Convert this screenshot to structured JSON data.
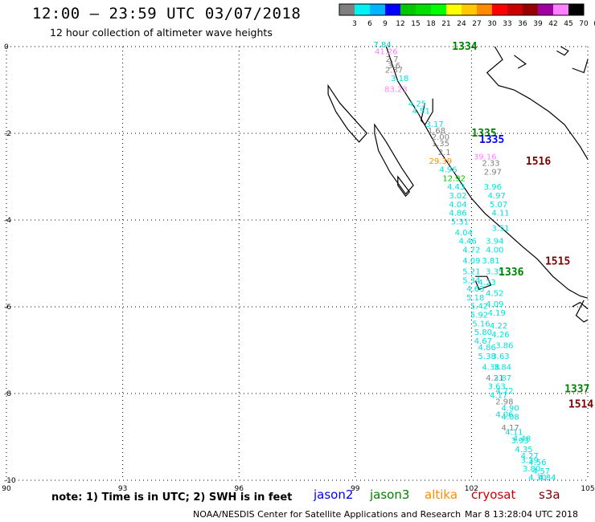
{
  "header": {
    "title": "12:00 — 23:59 UTC 03/07/2018",
    "subtitle": "12 hour collection of altimeter wave heights"
  },
  "colorbar": {
    "labels": [
      "3",
      "6",
      "9",
      "12",
      "15",
      "18",
      "21",
      "24",
      "27",
      "30",
      "33",
      "36",
      "39",
      "42",
      "45",
      "70",
      "(ft)"
    ],
    "colors": [
      "#7f7f7f",
      "#00f2f2",
      "#00b4ff",
      "#0000ff",
      "#00c800",
      "#00e000",
      "#00ff00",
      "#ffff00",
      "#ffc800",
      "#ff8c00",
      "#ff0000",
      "#c80000",
      "#960000",
      "#a000a0",
      "#ff80ff",
      "#000000"
    ]
  },
  "footer": {
    "note": "note:  1) Time is in UTC;  2) SWH is in feet",
    "satellites": [
      {
        "name": "jason2",
        "color": "#0000ff"
      },
      {
        "name": "jason3",
        "color": "#008000"
      },
      {
        "name": "altika",
        "color": "#ff8c00"
      },
      {
        "name": "cryosat",
        "color": "#cc0000"
      },
      {
        "name": "s3a",
        "color": "#800000"
      }
    ],
    "credit": "NOAA/NESDIS Center for Satellite Applications and Research",
    "timestamp": "Mar  8 13:28:04 UTC 2018"
  },
  "chart_data": {
    "type": "scatter",
    "xlabel": "",
    "ylabel": "",
    "x_ticks": [
      "90",
      "93",
      "96",
      "99",
      "102",
      "105"
    ],
    "y_ticks": [
      "0",
      "-2",
      "-4",
      "-6",
      "-8",
      "-10"
    ],
    "xlim": [
      90,
      105
    ],
    "ylim": [
      -10,
      0
    ],
    "grid": true,
    "coastline_color": "#000000",
    "pass_labels": [
      {
        "text": "1334",
        "lon": 101.5,
        "lat": 0.0,
        "color": "#008000"
      },
      {
        "text": "1335",
        "lon": 102.0,
        "lat": -2.0,
        "color": "#008000"
      },
      {
        "text": "1335",
        "lon": 102.2,
        "lat": -2.15,
        "color": "#0000ff"
      },
      {
        "text": "1516",
        "lon": 103.4,
        "lat": -2.65,
        "color": "#800000"
      },
      {
        "text": "1515",
        "lon": 103.9,
        "lat": -4.95,
        "color": "#800000"
      },
      {
        "text": "1336",
        "lon": 102.7,
        "lat": -5.2,
        "color": "#008000"
      },
      {
        "text": "1337",
        "lon": 104.4,
        "lat": -7.9,
        "color": "#008000"
      },
      {
        "text": "1514",
        "lon": 104.5,
        "lat": -8.25,
        "color": "#800000"
      }
    ],
    "points": [
      {
        "lon": 99.7,
        "lat": -0.02,
        "v": "7.84",
        "color": "#00c8c8"
      },
      {
        "lon": 99.8,
        "lat": -0.18,
        "v": "41.26",
        "color": "#ff80ff"
      },
      {
        "lon": 99.95,
        "lat": -0.35,
        "v": "2.7",
        "color": "#7f7f7f"
      },
      {
        "lon": 100.0,
        "lat": -0.5,
        "v": "3.6",
        "color": "#7f7f7f"
      },
      {
        "lon": 100.0,
        "lat": -0.6,
        "v": "2.37",
        "color": "#7f7f7f"
      },
      {
        "lon": 100.15,
        "lat": -0.8,
        "v": "3.18",
        "color": "#00e0e0"
      },
      {
        "lon": 100.05,
        "lat": -1.05,
        "v": "83.23",
        "color": "#ff80ff"
      },
      {
        "lon": 100.6,
        "lat": -1.38,
        "v": "4.25",
        "color": "#00e0e0"
      },
      {
        "lon": 100.7,
        "lat": -1.55,
        "v": "4.51",
        "color": "#00e0e0"
      },
      {
        "lon": 101.05,
        "lat": -1.85,
        "v": "3.17",
        "color": "#00e0e0"
      },
      {
        "lon": 101.1,
        "lat": -2.0,
        "v": "1.68",
        "color": "#7f7f7f"
      },
      {
        "lon": 101.2,
        "lat": -2.15,
        "v": "2.00",
        "color": "#7f7f7f"
      },
      {
        "lon": 101.2,
        "lat": -2.3,
        "v": "1.35",
        "color": "#7f7f7f"
      },
      {
        "lon": 101.3,
        "lat": -2.5,
        "v": "2.1",
        "color": "#7f7f7f"
      },
      {
        "lon": 101.2,
        "lat": -2.7,
        "v": "29.39",
        "color": "#ff8c00"
      },
      {
        "lon": 102.35,
        "lat": -2.6,
        "v": "39.16",
        "color": "#ff80ff"
      },
      {
        "lon": 102.5,
        "lat": -2.75,
        "v": "2.33",
        "color": "#7f7f7f"
      },
      {
        "lon": 101.4,
        "lat": -2.9,
        "v": "4.96",
        "color": "#00e0e0"
      },
      {
        "lon": 102.55,
        "lat": -2.95,
        "v": "2.97",
        "color": "#7f7f7f"
      },
      {
        "lon": 101.55,
        "lat": -3.1,
        "v": "12.92",
        "color": "#00c800"
      },
      {
        "lon": 101.6,
        "lat": -3.3,
        "v": "4.43",
        "color": "#00e0e0"
      },
      {
        "lon": 102.55,
        "lat": -3.3,
        "v": "3.96",
        "color": "#00e0e0"
      },
      {
        "lon": 101.65,
        "lat": -3.5,
        "v": "3.02",
        "color": "#00e0e0"
      },
      {
        "lon": 102.65,
        "lat": -3.5,
        "v": "4.97",
        "color": "#00e0e0"
      },
      {
        "lon": 101.65,
        "lat": -3.7,
        "v": "4.04",
        "color": "#00e0e0"
      },
      {
        "lon": 102.7,
        "lat": -3.7,
        "v": "5.07",
        "color": "#00e0e0"
      },
      {
        "lon": 101.65,
        "lat": -3.9,
        "v": "4.86",
        "color": "#00e0e0"
      },
      {
        "lon": 102.75,
        "lat": -3.9,
        "v": "4.11",
        "color": "#00e0e0"
      },
      {
        "lon": 101.7,
        "lat": -4.1,
        "v": "5.31",
        "color": "#00e0e0"
      },
      {
        "lon": 102.75,
        "lat": -4.25,
        "v": "3.51",
        "color": "#00e0e0"
      },
      {
        "lon": 101.8,
        "lat": -4.35,
        "v": "4.04",
        "color": "#00e0e0"
      },
      {
        "lon": 101.9,
        "lat": -4.55,
        "v": "4.46",
        "color": "#00e0e0"
      },
      {
        "lon": 102.6,
        "lat": -4.55,
        "v": "3.94",
        "color": "#00e0e0"
      },
      {
        "lon": 102.0,
        "lat": -4.75,
        "v": "4.72",
        "color": "#00e0e0"
      },
      {
        "lon": 102.6,
        "lat": -4.75,
        "v": "4.00",
        "color": "#00e0e0"
      },
      {
        "lon": 102.0,
        "lat": -5.0,
        "v": "4.09",
        "color": "#00e0e0"
      },
      {
        "lon": 102.5,
        "lat": -5.0,
        "v": "3.81",
        "color": "#00e0e0"
      },
      {
        "lon": 102.0,
        "lat": -5.25,
        "v": "5.21",
        "color": "#00e0e0"
      },
      {
        "lon": 102.6,
        "lat": -5.25,
        "v": "3.35",
        "color": "#00e0e0"
      },
      {
        "lon": 102.0,
        "lat": -5.45,
        "v": "5.34",
        "color": "#00e0e0"
      },
      {
        "lon": 102.4,
        "lat": -5.5,
        "v": "4.23",
        "color": "#00e0e0"
      },
      {
        "lon": 102.1,
        "lat": -5.65,
        "v": "4.63",
        "color": "#00e0e0"
      },
      {
        "lon": 102.6,
        "lat": -5.75,
        "v": "4.52",
        "color": "#00e0e0"
      },
      {
        "lon": 102.1,
        "lat": -5.85,
        "v": "5.18",
        "color": "#00e0e0"
      },
      {
        "lon": 102.2,
        "lat": -6.05,
        "v": "5.42",
        "color": "#00e0e0"
      },
      {
        "lon": 102.6,
        "lat": -6.0,
        "v": "4.09",
        "color": "#00e0e0"
      },
      {
        "lon": 102.2,
        "lat": -6.25,
        "v": "5.92",
        "color": "#00e0e0"
      },
      {
        "lon": 102.65,
        "lat": -6.2,
        "v": "4.19",
        "color": "#00e0e0"
      },
      {
        "lon": 102.25,
        "lat": -6.45,
        "v": "5.16",
        "color": "#00e0e0"
      },
      {
        "lon": 102.7,
        "lat": -6.5,
        "v": "4.22",
        "color": "#00e0e0"
      },
      {
        "lon": 102.3,
        "lat": -6.65,
        "v": "5.80",
        "color": "#00e0e0"
      },
      {
        "lon": 102.75,
        "lat": -6.7,
        "v": "4.26",
        "color": "#00e0e0"
      },
      {
        "lon": 102.3,
        "lat": -6.85,
        "v": "4.67",
        "color": "#00e0e0"
      },
      {
        "lon": 102.85,
        "lat": -6.95,
        "v": "3.86",
        "color": "#00e0e0"
      },
      {
        "lon": 102.4,
        "lat": -7.0,
        "v": "4.86",
        "color": "#00e0e0"
      },
      {
        "lon": 102.4,
        "lat": -7.2,
        "v": "5.38",
        "color": "#00e0e0"
      },
      {
        "lon": 102.75,
        "lat": -7.2,
        "v": "3.63",
        "color": "#00e0e0"
      },
      {
        "lon": 102.5,
        "lat": -7.45,
        "v": "4.38",
        "color": "#00e0e0"
      },
      {
        "lon": 102.8,
        "lat": -7.45,
        "v": "3.84",
        "color": "#00e0e0"
      },
      {
        "lon": 102.6,
        "lat": -7.7,
        "v": "4.21",
        "color": "#7f7f7f"
      },
      {
        "lon": 102.8,
        "lat": -7.7,
        "v": "3.87",
        "color": "#00e0e0"
      },
      {
        "lon": 102.65,
        "lat": -7.9,
        "v": "3.63",
        "color": "#00e0e0"
      },
      {
        "lon": 102.7,
        "lat": -8.1,
        "v": "4.17",
        "color": "#00e0e0"
      },
      {
        "lon": 102.85,
        "lat": -8.0,
        "v": "4.72",
        "color": "#00e0e0"
      },
      {
        "lon": 102.85,
        "lat": -8.25,
        "v": "2.98",
        "color": "#7f7f7f"
      },
      {
        "lon": 103.0,
        "lat": -8.4,
        "v": "4.90",
        "color": "#00e0e0"
      },
      {
        "lon": 102.85,
        "lat": -8.55,
        "v": "4.06",
        "color": "#00e0e0"
      },
      {
        "lon": 103.0,
        "lat": -8.6,
        "v": "4.08",
        "color": "#00e0e0"
      },
      {
        "lon": 103.0,
        "lat": -8.85,
        "v": "4.17",
        "color": "#7f7f7f"
      },
      {
        "lon": 103.1,
        "lat": -8.95,
        "v": "4.11",
        "color": "#00e0e0"
      },
      {
        "lon": 103.25,
        "lat": -9.15,
        "v": "3.93",
        "color": "#00e0e0"
      },
      {
        "lon": 103.3,
        "lat": -9.1,
        "v": "4.48",
        "color": "#00e0e0"
      },
      {
        "lon": 103.35,
        "lat": -9.35,
        "v": "4.35",
        "color": "#00e0e0"
      },
      {
        "lon": 103.5,
        "lat": -9.5,
        "v": "4.27",
        "color": "#00e0e0"
      },
      {
        "lon": 103.5,
        "lat": -9.6,
        "v": "3.39",
        "color": "#00e0e0"
      },
      {
        "lon": 103.7,
        "lat": -9.65,
        "v": "4.56",
        "color": "#00e0e0"
      },
      {
        "lon": 103.55,
        "lat": -9.8,
        "v": "3.80",
        "color": "#00e0e0"
      },
      {
        "lon": 103.8,
        "lat": -9.85,
        "v": "4.57",
        "color": "#00e0e0"
      },
      {
        "lon": 103.7,
        "lat": -10.0,
        "v": "4.30",
        "color": "#00e0e0"
      },
      {
        "lon": 103.95,
        "lat": -10.0,
        "v": "4.84",
        "color": "#00e0e0"
      }
    ]
  }
}
